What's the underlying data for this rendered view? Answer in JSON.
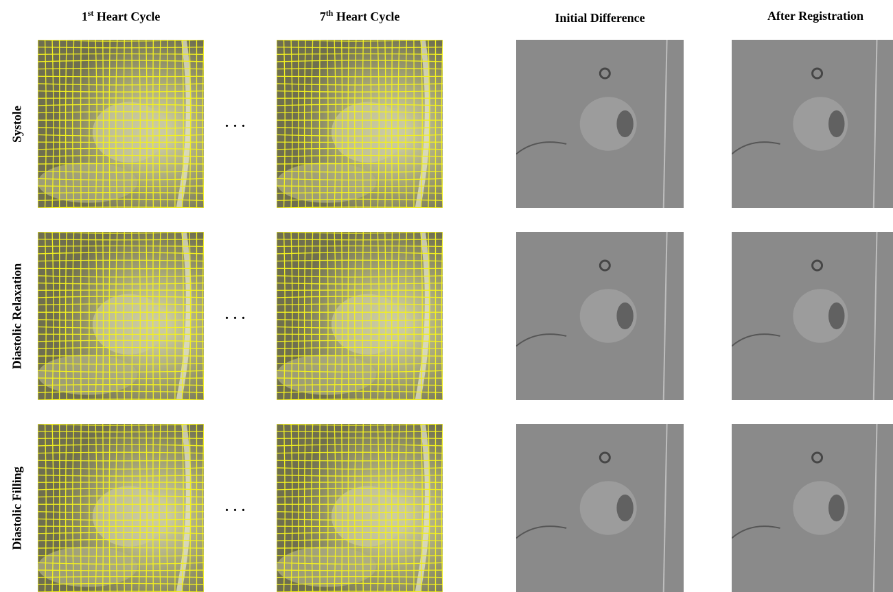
{
  "columns": [
    {
      "ordinal": "1",
      "suffix": "st",
      "label": "Heart Cycle"
    },
    {
      "ordinal": "7",
      "suffix": "th",
      "label": "Heart Cycle"
    },
    {
      "label": "Initial Difference"
    },
    {
      "label": "After Registration"
    }
  ],
  "rows": [
    "Systole",
    "Diastolic Relaxation",
    "Diastolic Filling"
  ],
  "ellipsis": ". . ."
}
